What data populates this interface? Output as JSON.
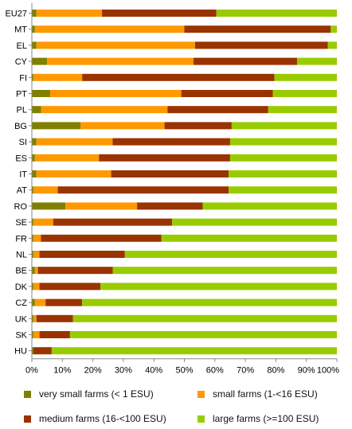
{
  "chart_data": {
    "type": "bar",
    "orientation": "horizontal",
    "stacked": true,
    "categories": [
      "EU27",
      "MT",
      "EL",
      "CY",
      "FI",
      "PT",
      "PL",
      "BG",
      "SI",
      "ES",
      "IT",
      "AT",
      "RO",
      "SE",
      "FR",
      "NL",
      "BE",
      "DK",
      "CZ",
      "UK",
      "SK",
      "HU"
    ],
    "series": [
      {
        "name": "very small farms (< 1 ESU)",
        "color": "#808000",
        "values": [
          1.5,
          1,
          1.5,
          5,
          0.5,
          6,
          3,
          16,
          1.5,
          1,
          1.5,
          0.5,
          11,
          0.5,
          0.5,
          0.5,
          1,
          0.5,
          1,
          0.5,
          0.5,
          0.5
        ]
      },
      {
        "name": "small farms (1-<16 ESU)",
        "color": "#ff9900",
        "values": [
          21.5,
          49,
          52,
          48,
          16,
          43,
          41.5,
          27.5,
          25,
          21,
          24.5,
          8,
          23.5,
          6.5,
          2.5,
          2,
          1,
          2,
          3.5,
          1,
          2,
          0
        ]
      },
      {
        "name": "medium farms (16-<100 ESU)",
        "color": "#993300",
        "values": [
          37.5,
          48,
          43.5,
          34,
          63,
          30,
          33,
          22,
          38.5,
          43,
          38.5,
          56,
          21.5,
          39,
          39.5,
          28,
          24.5,
          20,
          12,
          12,
          10,
          6
        ]
      },
      {
        "name": "large farms (>=100 ESU)",
        "color": "#99cc00",
        "values": [
          39.5,
          2,
          3,
          13,
          20.5,
          21,
          22.5,
          34.5,
          35,
          35,
          35.5,
          35.5,
          44,
          54,
          57.5,
          69.5,
          73.5,
          77.5,
          83.5,
          86.5,
          87.5,
          93.5
        ]
      }
    ],
    "x_ticks": [
      "0%",
      "10%",
      "20%",
      "30%",
      "40%",
      "50%",
      "60%",
      "70%",
      "80%",
      "90%",
      "100%"
    ],
    "xlim": [
      0,
      100
    ],
    "grid": false,
    "legend_position": "bottom"
  }
}
